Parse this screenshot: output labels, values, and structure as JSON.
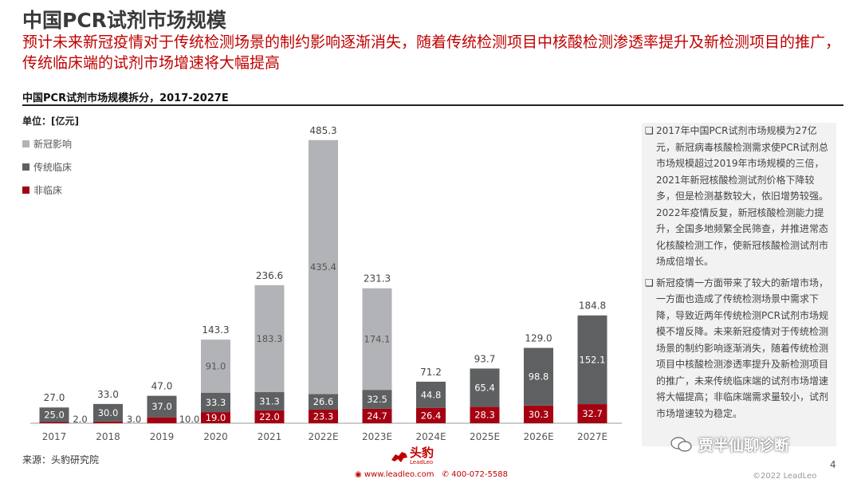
{
  "title": "中国PCR试剂市场规模",
  "subtitle": "预计未来新冠疫情对于传统检测场景的制约影响逐渐消失，随着传统检测项目中核酸检测渗透率提升及新检测项目的推广，传统临床端的试剂市场增速将大幅提高",
  "chart_heading": "中国PCR试剂市场规模拆分，2017-2027E",
  "unit_label": "单位：[亿元]",
  "colors": {
    "covid": "#b1b3b6",
    "traditional": "#5e6062",
    "non_clinical": "#a50011",
    "accent": "#c00000"
  },
  "chart_data": {
    "type": "bar",
    "stacked": true,
    "categories": [
      "2017",
      "2018",
      "2019",
      "2020",
      "2021",
      "2022E",
      "2023E",
      "2024E",
      "2025E",
      "2026E",
      "2027E"
    ],
    "series": [
      {
        "name": "非临床",
        "values": [
          2.0,
          3.0,
          10.0,
          19.0,
          22.0,
          23.3,
          24.7,
          26.4,
          28.3,
          30.3,
          32.7
        ]
      },
      {
        "name": "传统临床",
        "values": [
          25.0,
          30.0,
          37.0,
          33.3,
          31.3,
          26.6,
          32.5,
          44.8,
          65.4,
          98.8,
          152.1
        ]
      },
      {
        "name": "新冠影响",
        "values": [
          0,
          0,
          0,
          91.0,
          183.3,
          435.4,
          174.1,
          0,
          0,
          0,
          0
        ]
      }
    ],
    "totals": [
      27.0,
      33.0,
      47.0,
      143.3,
      236.6,
      485.3,
      231.3,
      71.2,
      93.7,
      129.0,
      184.8
    ],
    "legend": [
      "新冠影响",
      "传统临床",
      "非临床"
    ],
    "ylim": [
      0,
      500
    ],
    "ylabel": "单位：[亿元]",
    "title": "中国PCR试剂市场规模拆分，2017-2027E"
  },
  "notes": [
    "2017年中国PCR试剂市场规模为27亿元，新冠病毒核酸检测需求使PCR试剂总市场规模超过2019年市场规模的三倍，2021年新冠核酸检测试剂价格下降较多，但是检测基数较大，依旧增势较强。2022年疫情反复，新冠核酸检测能力提升，全国多地频繁全民筛查，并推进常态化核酸检测工作，使新冠核酸检测试剂市场成倍增长。",
    "新冠疫情一方面带来了较大的新增市场，一方面也造成了传统检测场景中需求下降，导致近两年传统检测PCR试剂市场规模不增反降。未来新冠疫情对于传统检测场景的制约影响逐渐消失，随着传统检测项目中核酸检测渗透率提升及新检测项目的推广，未来传统临床端的试剂市场增速将大幅提高；非临床端需求量较小，试剂市场增速较为稳定。"
  ],
  "source": "来源：头豹研究院",
  "logo": {
    "name": "头豹",
    "sub": "LeadLeo"
  },
  "contact": {
    "website": "www.leadleo.com",
    "phone": "400-072-5588"
  },
  "watermark": "贾半仙聊诊断",
  "page_number": "4",
  "copyright": "©2022 LeadLeo"
}
